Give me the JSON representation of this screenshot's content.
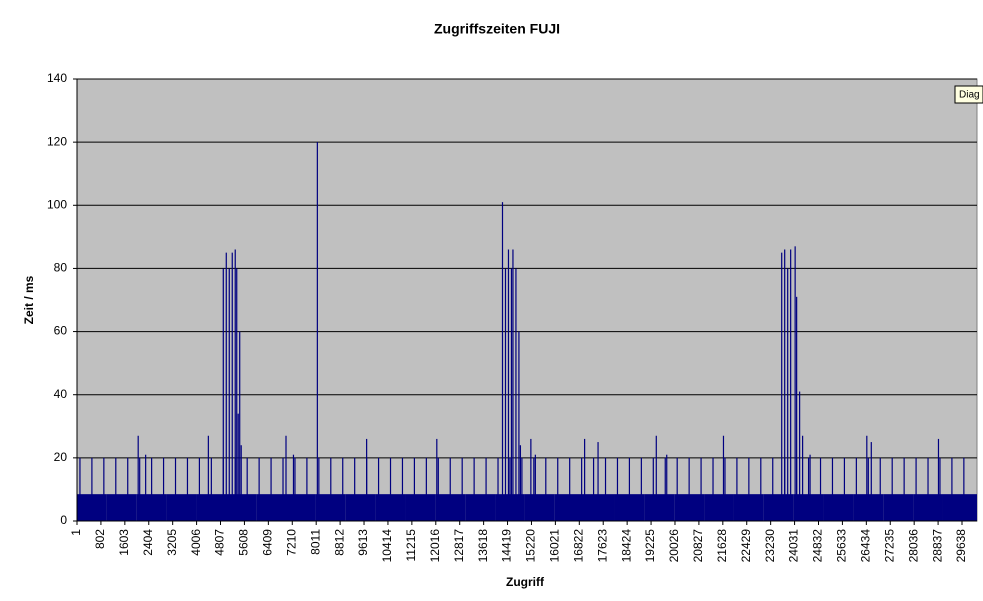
{
  "chart_data": {
    "type": "bar",
    "title": "Zugriffszeiten FUJI",
    "xlabel": "Zugriff",
    "ylabel": "Zeit / ms",
    "tooltip": "Diag",
    "xlim": [
      1,
      30140
    ],
    "ylim": [
      0,
      140
    ],
    "yticks": [
      0,
      20,
      40,
      60,
      80,
      100,
      120,
      140
    ],
    "grid": true,
    "xticks": [
      1,
      802,
      1603,
      2404,
      3205,
      4006,
      4807,
      5608,
      6409,
      7210,
      8011,
      8812,
      9613,
      10414,
      11215,
      12016,
      12817,
      13618,
      14419,
      15220,
      16021,
      16822,
      17623,
      18424,
      19225,
      20026,
      20827,
      21628,
      22429,
      23230,
      24031,
      24832,
      25633,
      26434,
      27235,
      28036,
      28837,
      29638
    ],
    "series": [
      {
        "color": "#000080",
        "x": [
          1,
          1001,
          2001,
          3001,
          4001,
          5001,
          6001,
          7001,
          8001,
          9001,
          10001,
          11001,
          12001,
          13001,
          14001,
          15001,
          16001,
          17001,
          18001,
          19001,
          20001,
          21001,
          22001,
          23001,
          24001,
          25001,
          26001,
          27001,
          28001,
          29001
        ],
        "values": [
          8.5,
          8.5,
          8.5,
          8.5,
          8.5,
          8.5,
          8.5,
          8.5,
          8.5,
          8.5,
          8.5,
          8.5,
          8.5,
          8.5,
          8.5,
          8.5,
          8.5,
          8.5,
          8.5,
          8.5,
          8.5,
          8.5,
          8.5,
          8.5,
          8.5,
          8.5,
          8.5,
          8.5,
          8.5,
          8.5
        ]
      },
      {
        "color": "#000080",
        "x": [
          100,
          500,
          900,
          1300,
          1700,
          2100,
          2500,
          2900,
          3300,
          3700,
          4100,
          4500,
          4900,
          5300,
          5700,
          6100,
          6500,
          6900,
          7300,
          7700,
          8100,
          8500,
          8900,
          9300,
          9700,
          10100,
          10500,
          10900,
          11300,
          11700,
          12100,
          12500,
          12900,
          13300,
          13700,
          14100,
          14500,
          14900,
          15300,
          15700,
          16100,
          16500,
          16900,
          17300,
          17700,
          18100,
          18500,
          18900,
          19300,
          19700,
          20100,
          20500,
          20900,
          21300,
          21700,
          22100,
          22500,
          22900,
          23300,
          23700,
          24100,
          24500,
          24900,
          25300,
          25700,
          26100,
          26500,
          26900,
          27300,
          27700,
          28100,
          28500,
          28900,
          29300,
          29700
        ],
        "values": [
          20,
          20,
          20,
          20,
          20,
          20,
          20,
          20,
          20,
          20,
          20,
          20,
          20,
          20,
          20,
          20,
          20,
          20,
          20,
          20,
          20,
          20,
          20,
          20,
          20,
          20,
          20,
          20,
          20,
          20,
          20,
          20,
          20,
          20,
          20,
          20,
          20,
          20,
          20,
          20,
          20,
          20,
          20,
          20,
          20,
          20,
          20,
          20,
          20,
          20,
          20,
          20,
          20,
          20,
          20,
          20,
          20,
          20,
          20,
          20,
          20,
          20,
          20,
          20,
          20,
          20,
          20,
          20,
          20,
          20,
          20,
          20,
          20,
          20,
          20
        ]
      },
      {
        "color": "#000080",
        "x": [
          2050,
          2300,
          4400,
          4900,
          5000,
          5100,
          5200,
          5300,
          5350,
          5400,
          5450,
          5500,
          7000,
          7250,
          8050,
          9700,
          12050,
          14250,
          14350,
          14450,
          14550,
          14600,
          14700,
          14800,
          14850,
          15200,
          15350,
          17000,
          17450,
          19400,
          19750,
          21650,
          23600,
          23700,
          23800,
          23900,
          24050,
          24100,
          24200,
          24300,
          24550,
          26450,
          26600,
          28850
        ],
        "values": [
          27,
          21,
          27,
          80,
          85,
          80,
          85,
          86,
          80,
          34,
          60,
          24,
          27,
          21,
          120,
          26,
          26,
          101,
          80,
          86,
          80,
          86,
          80,
          60,
          24,
          26,
          21,
          26,
          25,
          27,
          21,
          27,
          85,
          86,
          80,
          86,
          87,
          71,
          41,
          27,
          21,
          27,
          25,
          26
        ]
      }
    ]
  }
}
